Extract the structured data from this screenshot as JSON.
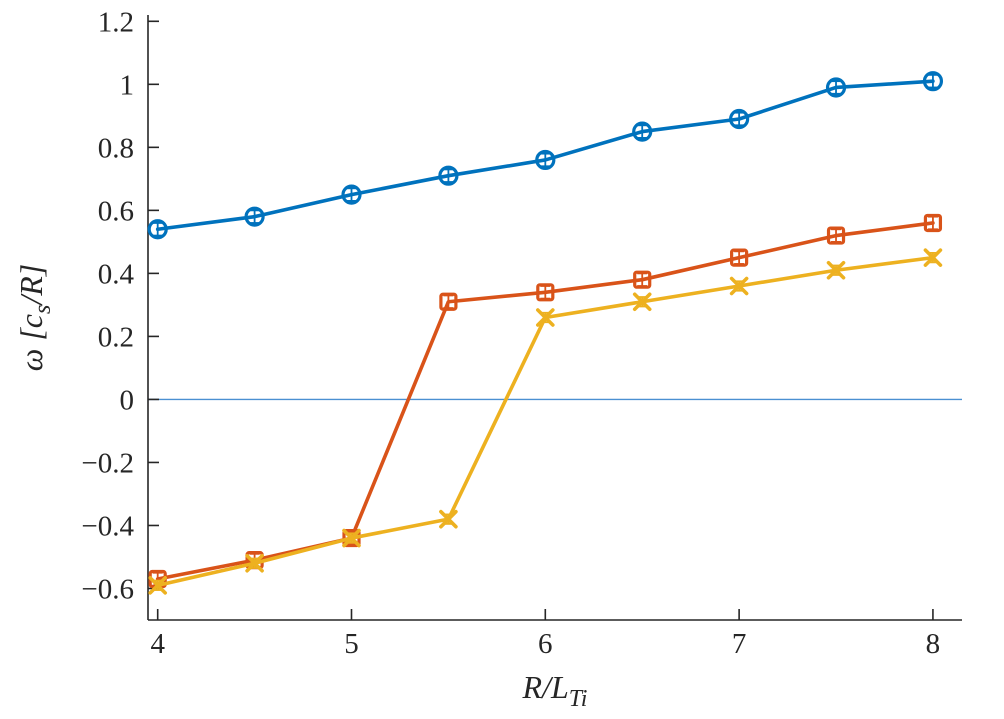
{
  "chart_data": {
    "type": "line",
    "x": [
      4,
      4.5,
      5,
      5.5,
      6,
      6.5,
      7,
      7.5,
      8
    ],
    "series": [
      {
        "name": "frequency-blue-circle",
        "marker": "circle",
        "color": "#0072BD",
        "yerr": 0.02,
        "values": [
          0.54,
          0.58,
          0.65,
          0.71,
          0.76,
          0.85,
          0.89,
          0.99,
          1.01
        ]
      },
      {
        "name": "frequency-orange-square",
        "marker": "square",
        "color": "#D95319",
        "yerr": 0.02,
        "values": [
          -0.57,
          -0.51,
          -0.44,
          0.31,
          0.34,
          0.38,
          0.45,
          0.52,
          0.56
        ]
      },
      {
        "name": "frequency-yellow-x",
        "marker": "x",
        "color": "#EDB120",
        "yerr": 0.015,
        "values": [
          -0.59,
          -0.52,
          -0.44,
          -0.38,
          0.26,
          0.31,
          0.36,
          0.41,
          0.45
        ]
      }
    ],
    "xlabel": "R/L_{Ti}",
    "ylabel": "ω [c_{s}/R]",
    "xlim": [
      3.95,
      8.15
    ],
    "ylim": [
      -0.7,
      1.22
    ],
    "xticks": [
      4,
      5,
      6,
      7,
      8
    ],
    "yticks": [
      -0.6,
      -0.4,
      -0.2,
      0,
      0.2,
      0.4,
      0.6,
      0.8,
      1,
      1.2
    ],
    "zero_line": {
      "y": 0,
      "color": "#4A90D2",
      "width": 1.3
    },
    "axis_color": "#262626",
    "grid": false,
    "legend_position": "none",
    "title": ""
  }
}
